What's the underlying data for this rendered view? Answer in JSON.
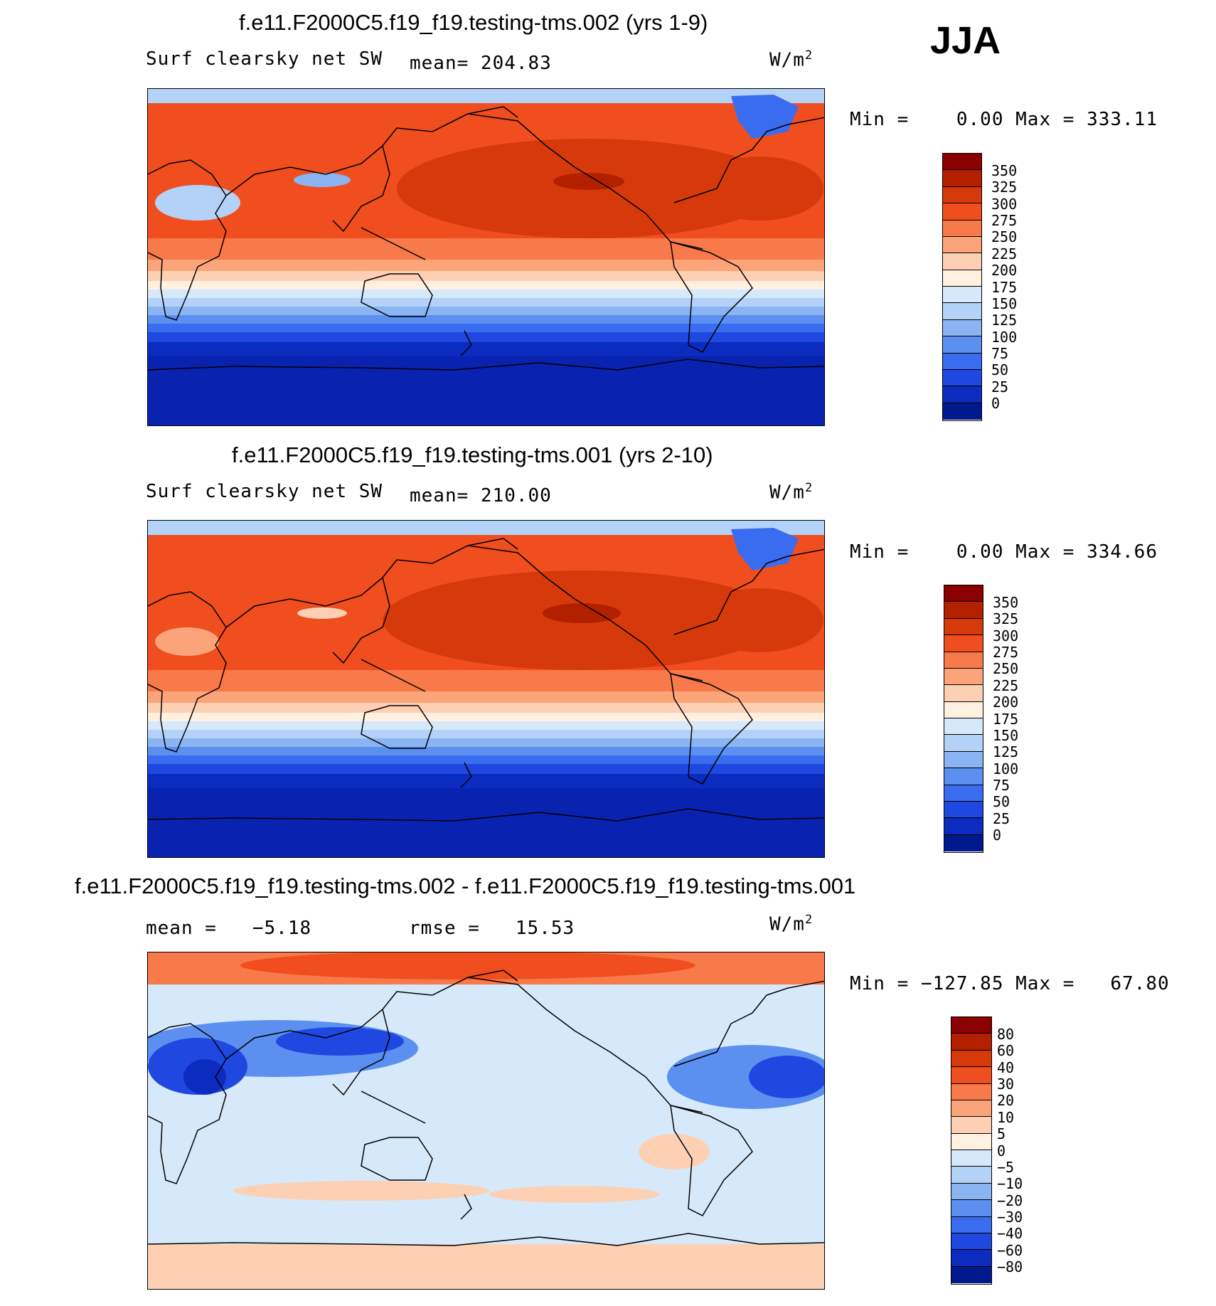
{
  "season": "JJA",
  "panels": [
    {
      "title": "f.e11.F2000C5.f19_f19.testing-tms.002 (yrs 1-9)",
      "variable": "Surf clearsky net SW",
      "mean_label": "mean= 204.83",
      "units_base": "W/m",
      "units_exp": "2",
      "minmax_label": "Min =    0.00 Max = 333.11",
      "colorbar_labels": [
        "350",
        "325",
        "300",
        "275",
        "250",
        "225",
        "200",
        "175",
        "150",
        "125",
        "100",
        "75",
        "50",
        "25",
        "0"
      ]
    },
    {
      "title": "f.e11.F2000C5.f19_f19.testing-tms.001 (yrs 2-10)",
      "variable": "Surf clearsky net SW",
      "mean_label": "mean= 210.00",
      "units_base": "W/m",
      "units_exp": "2",
      "minmax_label": "Min =    0.00 Max = 334.66",
      "colorbar_labels": [
        "350",
        "325",
        "300",
        "275",
        "250",
        "225",
        "200",
        "175",
        "150",
        "125",
        "100",
        "75",
        "50",
        "25",
        "0"
      ]
    },
    {
      "title": "f.e11.F2000C5.f19_f19.testing-tms.002 - f.e11.F2000C5.f19_f19.testing-tms.001",
      "mean_label": "mean =   −5.18",
      "rmse_label": "rmse =   15.53",
      "units_base": "W/m",
      "units_exp": "2",
      "minmax_label": "Min = −127.85 Max =   67.80",
      "colorbar_labels": [
        "80",
        "60",
        "40",
        "30",
        "20",
        "10",
        "5",
        "0",
        "−5",
        "−10",
        "−20",
        "−30",
        "−40",
        "−60",
        "−80"
      ]
    }
  ],
  "colors": {
    "abs_scale": [
      "#8b0000",
      "#b22000",
      "#d63a0a",
      "#f04e1e",
      "#f8794a",
      "#fba47a",
      "#fdd0b4",
      "#fff0e0",
      "#d6e9fb",
      "#b4d2f7",
      "#8ab4f2",
      "#5b8ff0",
      "#3a6cf0",
      "#1f48e0",
      "#0c2cc0",
      "#001a8c"
    ],
    "diff_scale": [
      "#8b0000",
      "#b22000",
      "#d63a0a",
      "#f04e1e",
      "#f8794a",
      "#fba47a",
      "#fdd0b4",
      "#fff0e0",
      "#d6e9fb",
      "#b4d2f7",
      "#8ab4f2",
      "#5b8ff0",
      "#3a6cf0",
      "#1f48e0",
      "#0c2cc0",
      "#001a8c"
    ]
  }
}
